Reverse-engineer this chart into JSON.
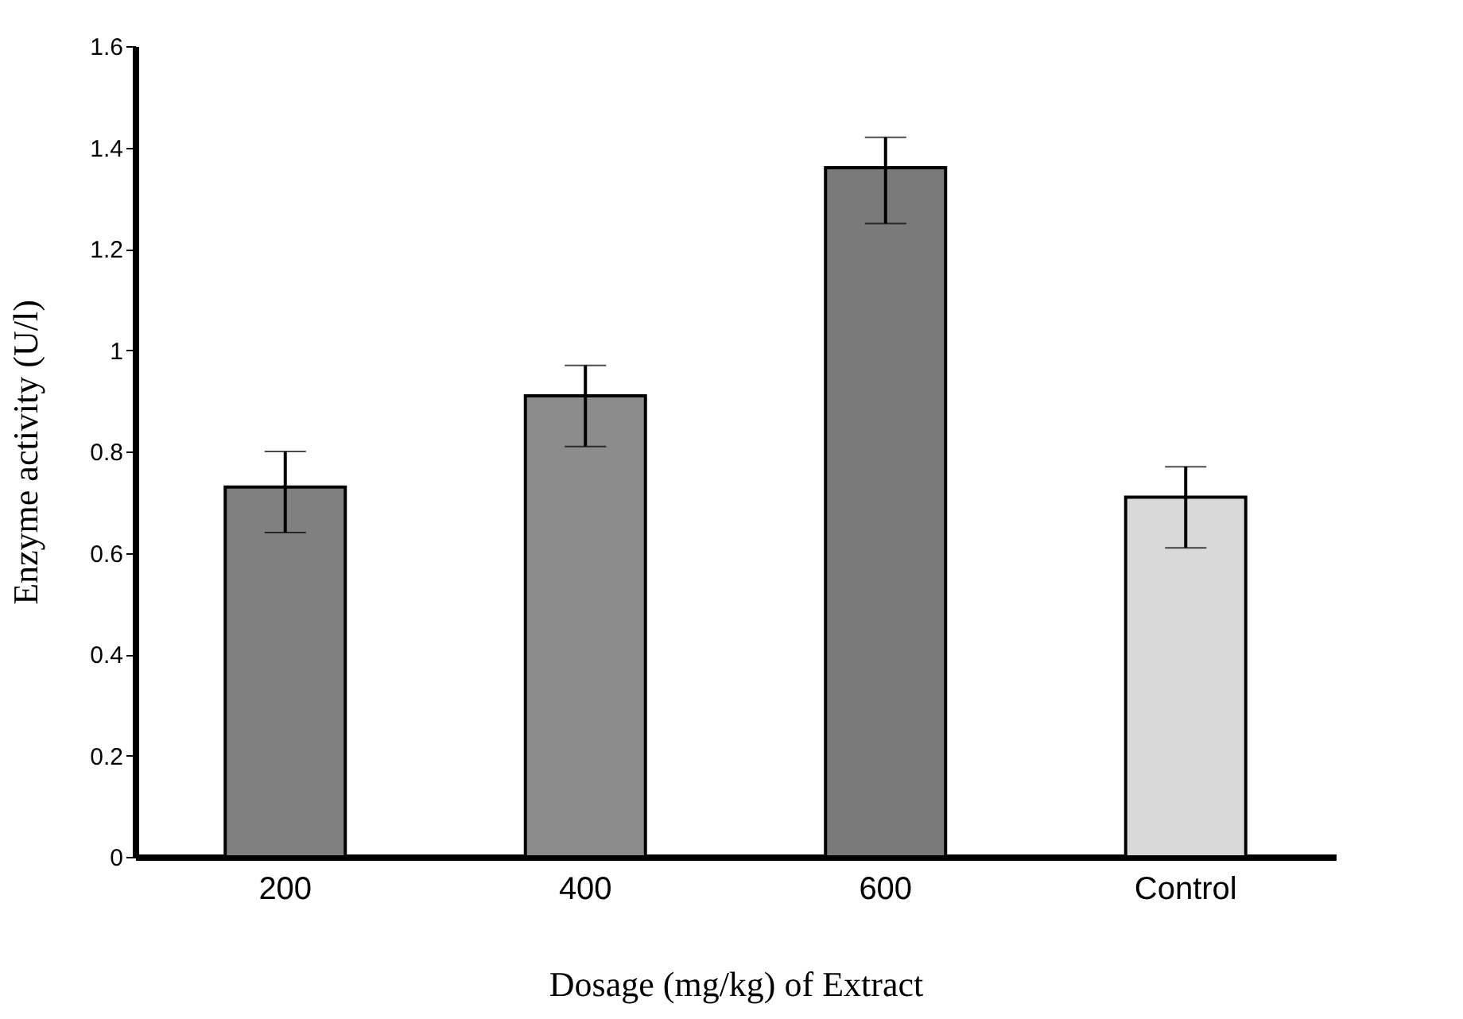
{
  "chart_data": {
    "type": "bar",
    "xlabel": "Dosage (mg/kg) of Extract",
    "ylabel": "Enzyme activity (U/l)",
    "categories": [
      "200",
      "400",
      "600",
      "Control"
    ],
    "values": [
      0.73,
      0.91,
      1.36,
      0.71
    ],
    "errors": [
      [
        0.64,
        0.8
      ],
      [
        0.81,
        0.97
      ],
      [
        1.25,
        1.42
      ],
      [
        0.61,
        0.77
      ]
    ],
    "colors": [
      "#808080",
      "#8c8c8c",
      "#7a7a7a",
      "#d9d9d9"
    ],
    "ylim": [
      0,
      1.6
    ],
    "yticks": [
      0,
      0.2,
      0.4,
      0.6,
      0.8,
      1,
      1.2,
      1.4,
      1.6
    ],
    "grid": false
  }
}
